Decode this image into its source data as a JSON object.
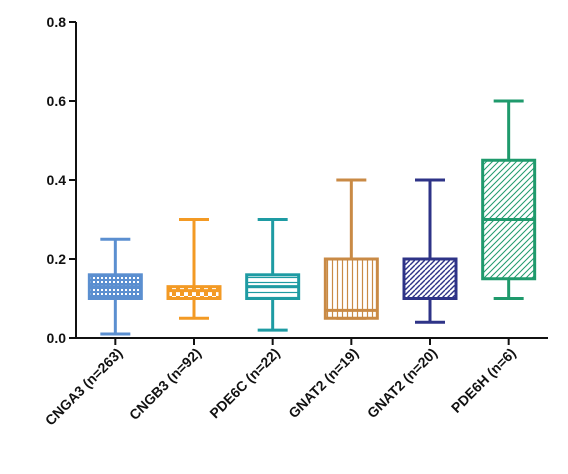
{
  "chart_data": {
    "type": "box",
    "title": "",
    "xlabel": "",
    "ylabel": "",
    "ylim": [
      0,
      0.8
    ],
    "yticks": [
      "0.0",
      "0.2",
      "0.4",
      "0.6",
      "0.8"
    ],
    "ytick_values": [
      0,
      0.2,
      0.4,
      0.6,
      0.8
    ],
    "grid": false,
    "legend": "none",
    "categories": [
      "CNGA3 (n=263)",
      "CNGB3 (n=92)",
      "PDE6C (n=22)",
      "GNAT2 (n=19)",
      "GNAT2 (n=20)",
      "PDE6H (n=6)"
    ],
    "series": [
      {
        "category": "CNGA3 (n=263)",
        "min": 0.01,
        "q1": 0.1,
        "median": 0.13,
        "q3": 0.16,
        "max": 0.25,
        "color": "#5b8fd0",
        "pattern": "grid"
      },
      {
        "category": "CNGB3 (n=92)",
        "min": 0.05,
        "q1": 0.1,
        "median": 0.12,
        "q3": 0.13,
        "max": 0.3,
        "color": "#f39a24",
        "pattern": "checker"
      },
      {
        "category": "PDE6C (n=22)",
        "min": 0.02,
        "q1": 0.1,
        "median": 0.13,
        "q3": 0.16,
        "max": 0.3,
        "color": "#1e9ba3",
        "pattern": "horizontal"
      },
      {
        "category": "GNAT2 (n=19)",
        "min": 0.05,
        "q1": 0.05,
        "median": 0.07,
        "q3": 0.2,
        "max": 0.4,
        "color": "#c98a45",
        "pattern": "vertical"
      },
      {
        "category": "GNAT2 (n=20)",
        "min": 0.04,
        "q1": 0.1,
        "median": 0.2,
        "q3": 0.2,
        "max": 0.4,
        "color": "#2e3387",
        "pattern": "diagonal"
      },
      {
        "category": "PDE6H (n=6)",
        "min": 0.1,
        "q1": 0.15,
        "median": 0.3,
        "q3": 0.45,
        "max": 0.6,
        "color": "#1f9a6c",
        "pattern": "diagonal-dense"
      }
    ]
  }
}
